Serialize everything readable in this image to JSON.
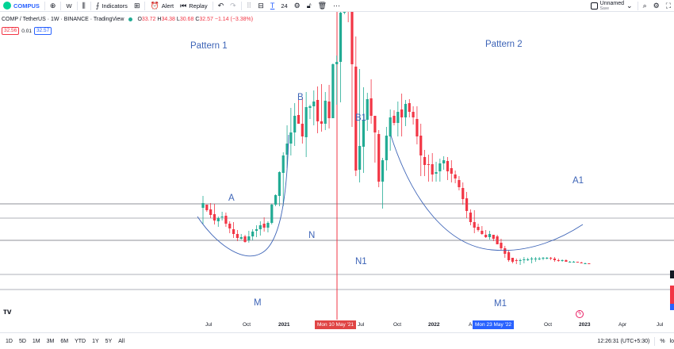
{
  "toolbar": {
    "symbol": "COMPUS",
    "add_symbol_icon": "plus-circle-icon",
    "interval": "W",
    "indicators_label": "Indicators",
    "alert_label": "Alert",
    "replay_label": "Replay",
    "draw_size": "24",
    "unnamed_label": "Unnamed",
    "save_label": "Save"
  },
  "legend": {
    "title": "COMP / TetherUS · 1W · BINANCE · TradingView",
    "open": "33.72",
    "high": "34.38",
    "low": "30.68",
    "close": "32.57",
    "change": "−1.14 (−3.38%)",
    "bid": "32.56",
    "spread": "0.01",
    "ask": "32.57"
  },
  "annotations": {
    "pattern1": "Pattern 1",
    "pattern2": "Pattern 2",
    "A": "A",
    "B": "B",
    "N": "N",
    "M": "M",
    "B1": "B1",
    "N1": "N1",
    "M1": "M1",
    "A1": "A1"
  },
  "time_axis": {
    "ticks": [
      "Jul",
      "Oct",
      "2021",
      "Jul",
      "Oct",
      "2022",
      "Oct",
      "2023",
      "Apr",
      "Jul"
    ],
    "cursor_label": "Mon 10 May '21",
    "cursor_label2": "Mon 23 May '22",
    "cursor_letter": "A"
  },
  "bottom": {
    "ranges": [
      "1D",
      "5D",
      "1M",
      "3M",
      "6M",
      "YTD",
      "1Y",
      "5Y",
      "All"
    ],
    "clock": "12:26:31 (UTC+5:30)",
    "percent": "%",
    "log": "lo"
  },
  "colors": {
    "up": "#22ab94",
    "down": "#f23645",
    "accent": "#2962ff",
    "annotation": "#3d64b7",
    "cursor": "#f23645",
    "tag_red": "#e04545",
    "tag_blue": "#2962ff"
  },
  "chart_data": {
    "type": "candlestick",
    "symbol": "COMP / TetherUS",
    "interval": "1W",
    "horizontal_levels_count": 5,
    "ohlc": [
      [
        108,
        88,
        123,
        114
      ],
      [
        112,
        103,
        112,
        105
      ],
      [
        106,
        95,
        114,
        99
      ],
      [
        100,
        87,
        113,
        92
      ],
      [
        91,
        84,
        97,
        95
      ],
      [
        96,
        92,
        103,
        97
      ],
      [
        98,
        84,
        102,
        88
      ],
      [
        88,
        76,
        91,
        82
      ],
      [
        81,
        70,
        90,
        75
      ],
      [
        75,
        66,
        80,
        70
      ],
      [
        69,
        68,
        75,
        71
      ],
      [
        72,
        64,
        74,
        65
      ],
      [
        67,
        64,
        79,
        72
      ],
      [
        72,
        67,
        81,
        78
      ],
      [
        79,
        71,
        86,
        81
      ],
      [
        81,
        73,
        91,
        86
      ],
      [
        88,
        78,
        96,
        83
      ],
      [
        83,
        77,
        91,
        89
      ],
      [
        89,
        87,
        113,
        112
      ],
      [
        112,
        110,
        125,
        124
      ],
      [
        123,
        110,
        154,
        153
      ],
      [
        152,
        110,
        178,
        174
      ],
      [
        175,
        158,
        212,
        189
      ],
      [
        189,
        174,
        234,
        203
      ],
      [
        203,
        186,
        240,
        224
      ],
      [
        225,
        214,
        248,
        214
      ],
      [
        214,
        189,
        247,
        198
      ],
      [
        197,
        172,
        254,
        235
      ],
      [
        234,
        220,
        238,
        236
      ],
      [
        236,
        212,
        256,
        242
      ],
      [
        244,
        202,
        261,
        217
      ],
      [
        217,
        204,
        264,
        214
      ],
      [
        214,
        206,
        254,
        243
      ],
      [
        242,
        208,
        263,
        221
      ],
      [
        221,
        221,
        290,
        289
      ],
      [
        289,
        238,
        300,
        292
      ],
      [
        292,
        241,
        361,
        354
      ],
      [
        354,
        352,
        413,
        410
      ],
      [
        410,
        342,
        424,
        369
      ],
      [
        371,
        210,
        365,
        289
      ],
      [
        286,
        148,
        324,
        155
      ],
      [
        156,
        140,
        283,
        186
      ],
      [
        185,
        152,
        260,
        219
      ],
      [
        219,
        205,
        253,
        245
      ],
      [
        246,
        214,
        270,
        224
      ],
      [
        224,
        165,
        220,
        203
      ],
      [
        201,
        134,
        206,
        141
      ],
      [
        141,
        107,
        171,
        168
      ],
      [
        168,
        155,
        210,
        199
      ],
      [
        198,
        180,
        232,
        222
      ],
      [
        224,
        212,
        231,
        215
      ],
      [
        215,
        198,
        242,
        229
      ],
      [
        232,
        198,
        252,
        222
      ],
      [
        222,
        211,
        244,
        239
      ],
      [
        240,
        222,
        245,
        229
      ],
      [
        229,
        213,
        236,
        222
      ],
      [
        220,
        188,
        236,
        198
      ],
      [
        199,
        148,
        214,
        174
      ],
      [
        172,
        148,
        181,
        162
      ],
      [
        163,
        141,
        175,
        162
      ],
      [
        163,
        141,
        177,
        150
      ],
      [
        151,
        141,
        166,
        153
      ],
      [
        154,
        141,
        170,
        164
      ],
      [
        164,
        156,
        173,
        168
      ],
      [
        167,
        143,
        172,
        154
      ],
      [
        158,
        140,
        168,
        151
      ],
      [
        150,
        139,
        155,
        145
      ],
      [
        143,
        130,
        148,
        134
      ],
      [
        133,
        112,
        140,
        119
      ],
      [
        120,
        95,
        128,
        104
      ],
      [
        102,
        86,
        106,
        90
      ],
      [
        90,
        76,
        105,
        83
      ],
      [
        84,
        78,
        88,
        80
      ],
      [
        79,
        74,
        85,
        75
      ],
      [
        74,
        70,
        80,
        71
      ],
      [
        71,
        68,
        79,
        75
      ],
      [
        74,
        66,
        74,
        69
      ],
      [
        72,
        63,
        74,
        62
      ],
      [
        64,
        55,
        69,
        57
      ],
      [
        57,
        45,
        60,
        50
      ],
      [
        52,
        40,
        54,
        42
      ],
      [
        45,
        38,
        45,
        40
      ],
      [
        42,
        37,
        44,
        41
      ],
      [
        41,
        36,
        44,
        42
      ],
      [
        42,
        38,
        46,
        43
      ],
      [
        43,
        41,
        45,
        43
      ],
      [
        44,
        38,
        46,
        44
      ],
      [
        44,
        40,
        46,
        44
      ],
      [
        44,
        42,
        46,
        44
      ],
      [
        44,
        42,
        46,
        45
      ],
      [
        45,
        43,
        46,
        45
      ],
      [
        45,
        42,
        46,
        44
      ],
      [
        44,
        40,
        46,
        42
      ],
      [
        42,
        40,
        44,
        41
      ],
      [
        41,
        40,
        43,
        42
      ],
      [
        42,
        40,
        43,
        40
      ],
      [
        40,
        39,
        41,
        40
      ],
      [
        40,
        39,
        41,
        40
      ],
      [
        40,
        39,
        40,
        39
      ],
      [
        39,
        38,
        40,
        38
      ],
      [
        38,
        37,
        39,
        38
      ],
      [
        38,
        37,
        38,
        37
      ]
    ]
  }
}
